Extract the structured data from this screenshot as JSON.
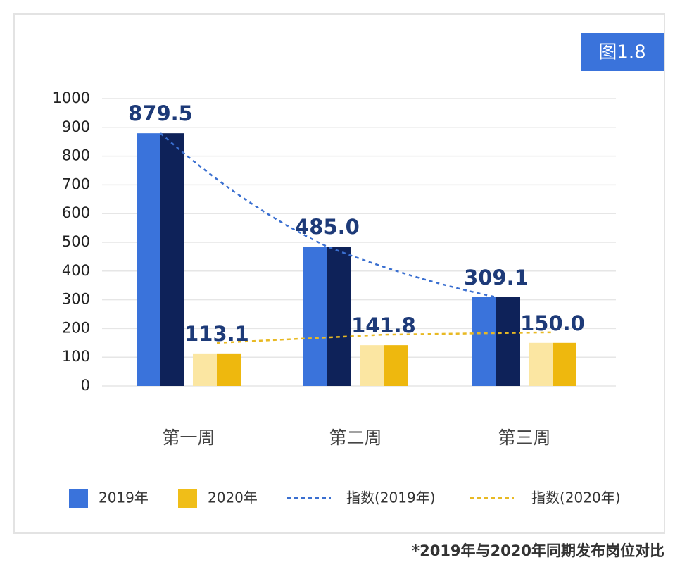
{
  "chart_data": {
    "type": "bar",
    "badge": "图1.8",
    "footnote": "*2019年与2020年同期发布岗位对比",
    "categories": [
      "第一周",
      "第二周",
      "第三周"
    ],
    "series": [
      {
        "name": "2019年",
        "color": "#3a73db",
        "colors": [
          "#3a73db",
          "#0e2259"
        ],
        "values": [
          879.5,
          485.0,
          309.1
        ],
        "value_labels": [
          "879.5",
          "485.0",
          "309.1"
        ],
        "trend_name": "指数(2019年)",
        "trend_color": "#3a6fd0"
      },
      {
        "name": "2020年",
        "color": "#f0be18",
        "colors": [
          "#fbe6a2",
          "#eeb80e"
        ],
        "values": [
          113.1,
          141.8,
          150.0
        ],
        "value_labels": [
          "113.1",
          "141.8",
          "150.0"
        ],
        "trend_name": "指数(2020年)",
        "trend_color": "#e8b923"
      }
    ],
    "ylim": [
      0,
      1000
    ],
    "yticks": [
      0,
      100,
      200,
      300,
      400,
      500,
      600,
      700,
      800,
      900,
      1000
    ],
    "grid": true
  }
}
